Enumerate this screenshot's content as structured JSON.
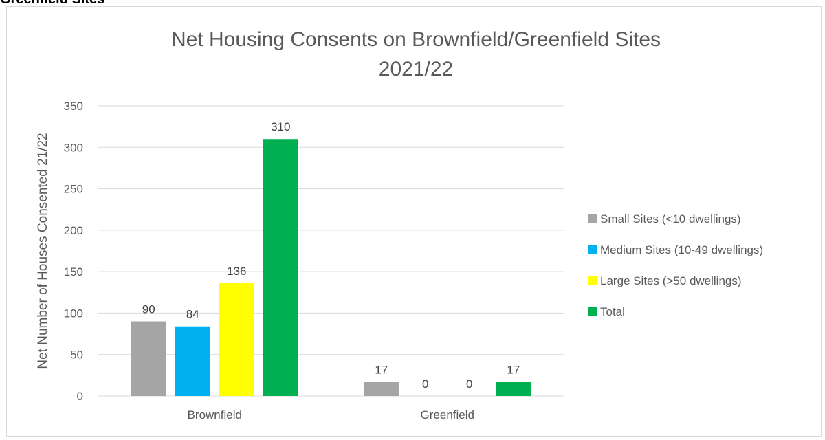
{
  "page_heading": "Greenfield Sites",
  "chart_data": {
    "type": "bar",
    "title": "Net Housing Consents on Brownfield/Greenfield Sites",
    "subtitle": "2021/22",
    "xlabel": "",
    "ylabel": "Net Number of Houses Consented 21/22",
    "ylim": [
      0,
      350
    ],
    "yticks": [
      0,
      50,
      100,
      150,
      200,
      250,
      300,
      350
    ],
    "grid": true,
    "legend_position": "right",
    "categories": [
      "Brownfield",
      "Greenfield"
    ],
    "series": [
      {
        "name": "Small Sites (<10 dwellings)",
        "color": "#a5a5a5",
        "values": [
          90,
          17
        ]
      },
      {
        "name": "Medium Sites (10-49 dwellings)",
        "color": "#00b0f0",
        "values": [
          84,
          0
        ]
      },
      {
        "name": "Large Sites (>50 dwellings)",
        "color": "#ffff00",
        "values": [
          136,
          0
        ]
      },
      {
        "name": "Total",
        "color": "#00b050",
        "values": [
          310,
          17
        ]
      }
    ]
  }
}
